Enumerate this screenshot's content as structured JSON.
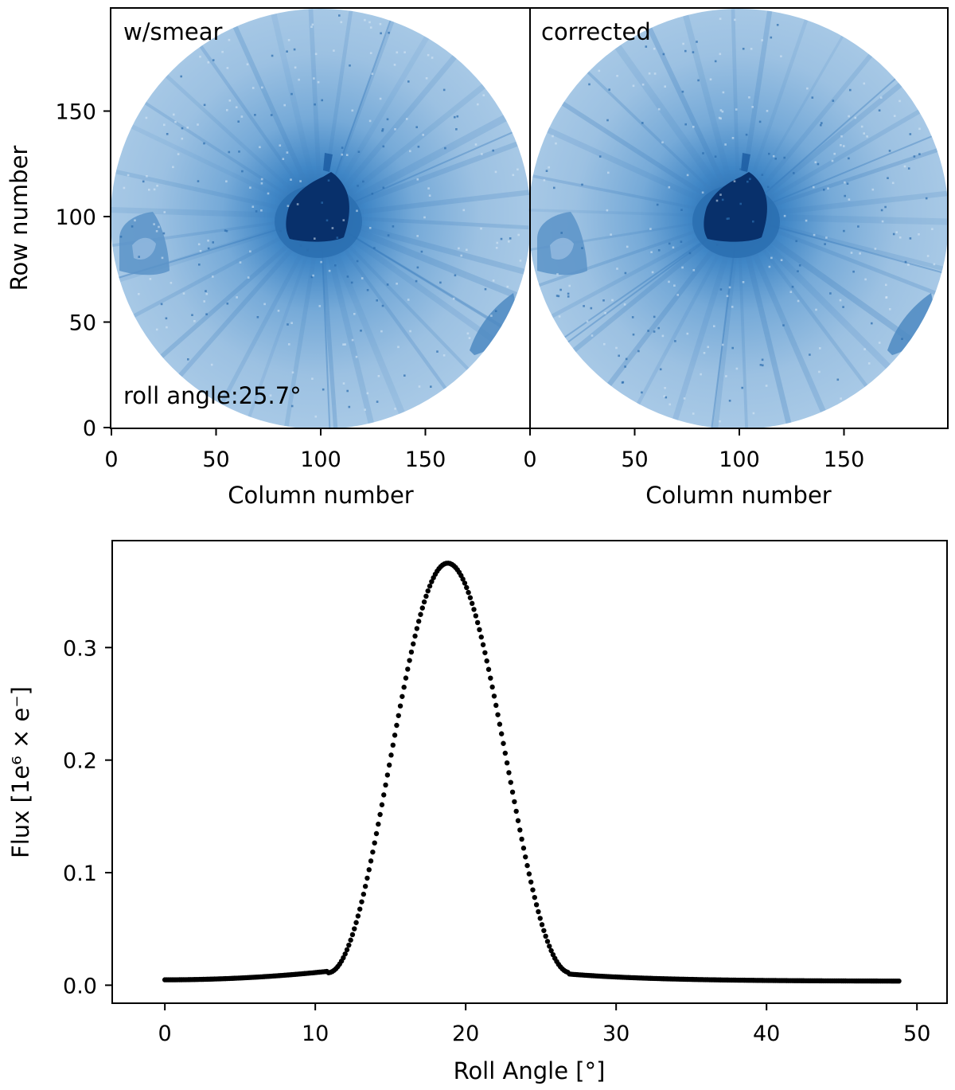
{
  "chart_data": [
    {
      "type": "image",
      "panel": "left",
      "label": "w/smear",
      "annotation": "roll angle:25.7°",
      "xlabel": "Column number",
      "ylabel": "Row number",
      "xlim": [
        0,
        200
      ],
      "ylim": [
        0,
        200
      ],
      "xticks": [
        "0",
        "50",
        "100",
        "150"
      ],
      "yticks": [
        "0",
        "50",
        "100",
        "150"
      ],
      "colormap": "Blues"
    },
    {
      "type": "image",
      "panel": "right",
      "label": "corrected",
      "xlabel": "Column number",
      "xlim": [
        0,
        200
      ],
      "ylim": [
        0,
        200
      ],
      "xticks": [
        "0",
        "50",
        "100",
        "150"
      ],
      "colormap": "Blues"
    },
    {
      "type": "scatter",
      "xlabel": "Roll Angle [°]",
      "ylabel": "Flux [1e⁶ × e⁻]",
      "xlim": [
        -3.5,
        52
      ],
      "ylim": [
        -0.016,
        0.395
      ],
      "xticks": [
        "0",
        "10",
        "20",
        "30",
        "40",
        "50"
      ],
      "yticks": [
        "0.0",
        "0.1",
        "0.2",
        "0.3"
      ],
      "x_range": [
        0,
        48.8
      ],
      "n_points": 400,
      "peak": {
        "x": 18.8,
        "y": 0.375
      },
      "shape": "narrow peak between ~10.7° and ~27° on a low baseline near 0.005"
    }
  ],
  "colors": {
    "bg_light": "#9fc3e2",
    "bg_mid": "#5c9bcf",
    "streak": "#3f86c6",
    "core": "#08306b",
    "core_edge": "#1a5aa0",
    "spot": "#4a6c9a",
    "points": "#000000",
    "axis": "#000000"
  }
}
